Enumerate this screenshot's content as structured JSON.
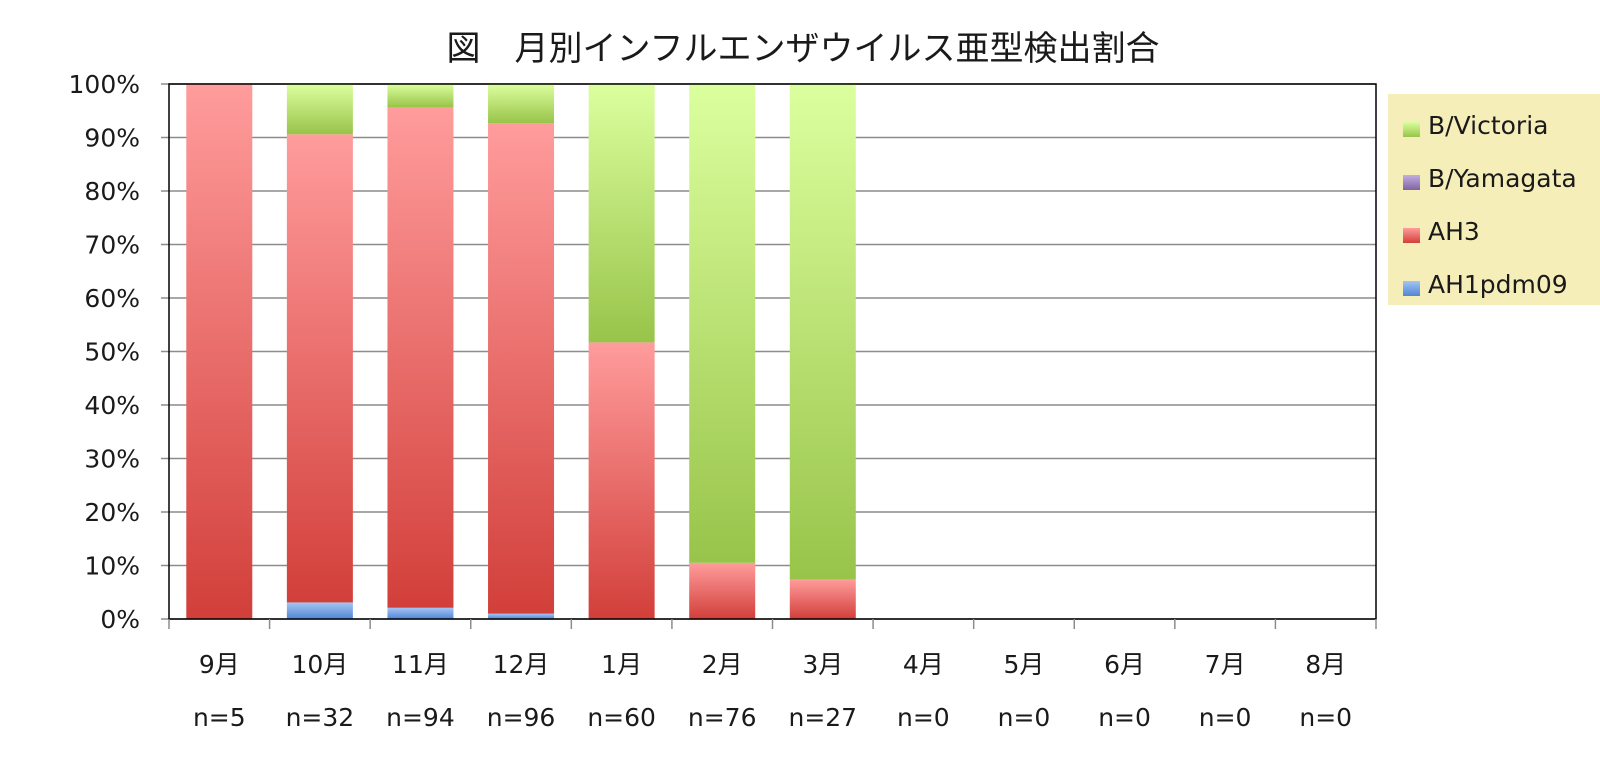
{
  "chart_data": {
    "type": "bar",
    "stacked": true,
    "percent": true,
    "title": "図　月別インフルエンザウイルス亜型検出割合",
    "categories": [
      "9月",
      "10月",
      "11月",
      "12月",
      "1月",
      "2月",
      "3月",
      "4月",
      "5月",
      "6月",
      "7月",
      "8月"
    ],
    "sample_sizes": [
      "n=5",
      "n=32",
      "n=94",
      "n=96",
      "n=60",
      "n=76",
      "n=27",
      "n=0",
      "n=0",
      "n=0",
      "n=0",
      "n=0"
    ],
    "series": [
      {
        "name": "AH1pdm09",
        "values": [
          0,
          3.1,
          2.1,
          1.0,
          0,
          0,
          0,
          0,
          0,
          0,
          0,
          0
        ]
      },
      {
        "name": "AH3",
        "values": [
          100,
          87.5,
          93.6,
          91.7,
          51.7,
          10.5,
          7.4,
          0,
          0,
          0,
          0,
          0
        ]
      },
      {
        "name": "B/Yamagata",
        "values": [
          0,
          0,
          0,
          0,
          0,
          0,
          0,
          0,
          0,
          0,
          0,
          0
        ]
      },
      {
        "name": "B/Victoria",
        "values": [
          0,
          9.4,
          4.3,
          7.3,
          48.3,
          89.5,
          92.6,
          0,
          0,
          0,
          0,
          0
        ]
      }
    ],
    "legend_order": [
      "B/Victoria",
      "B/Yamagata",
      "AH3",
      "AH1pdm09"
    ],
    "yticks": [
      "0%",
      "10%",
      "20%",
      "30%",
      "40%",
      "50%",
      "60%",
      "70%",
      "80%",
      "90%",
      "100%"
    ],
    "ylim": [
      0,
      100
    ],
    "grid": true,
    "legend_position": "right",
    "colors": {
      "AH1pdm09": {
        "light": "#a6c4f2",
        "dark": "#4f86d6"
      },
      "AH3": {
        "light": "#ff9c9c",
        "dark": "#d23f3a"
      },
      "B/Yamagata": {
        "light": "#c3aee0",
        "dark": "#8064a2"
      },
      "B/Victoria": {
        "light": "#dcff9e",
        "dark": "#98c44a"
      }
    },
    "legend_background": "#f6eeb8",
    "gridline_color": "#8c8c8c"
  }
}
